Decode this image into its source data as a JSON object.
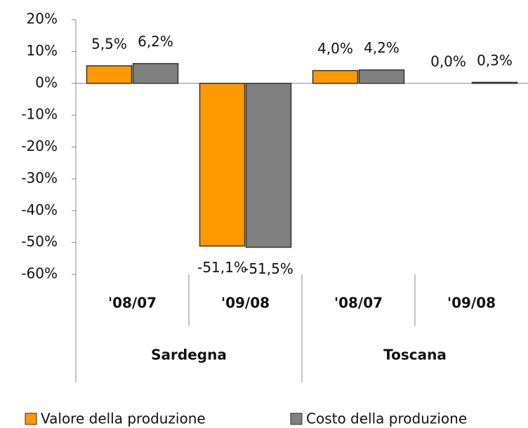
{
  "chart_data": {
    "type": "bar",
    "categories": [
      "'08/07",
      "'09/08",
      "'08/07",
      "'09/08"
    ],
    "groups": [
      "Sardegna",
      "Toscana"
    ],
    "series": [
      {
        "name": "Valore della produzione",
        "color": "#ff9900",
        "values": [
          5.5,
          -51.1,
          4.0,
          0.0
        ],
        "value_labels": [
          "5,5%",
          "-51,1%",
          "4,0%",
          "0,0%"
        ]
      },
      {
        "name": "Costo della produzione",
        "color": "#808080",
        "values": [
          6.2,
          -51.5,
          4.2,
          0.3
        ],
        "value_labels": [
          "6,2%",
          "-51,5%",
          "4,2%",
          "0,3%"
        ]
      }
    ],
    "ylim": [
      -60,
      20
    ],
    "yticks": [
      {
        "value": 20,
        "label": "20%"
      },
      {
        "value": 10,
        "label": "10%"
      },
      {
        "value": 0,
        "label": "0%"
      },
      {
        "value": -10,
        "label": "-10%"
      },
      {
        "value": -20,
        "label": "-20%"
      },
      {
        "value": -30,
        "label": "-30%"
      },
      {
        "value": -40,
        "label": "-40%"
      },
      {
        "value": -50,
        "label": "-50%"
      },
      {
        "value": -60,
        "label": "-60%"
      }
    ],
    "legend": "bottom"
  }
}
